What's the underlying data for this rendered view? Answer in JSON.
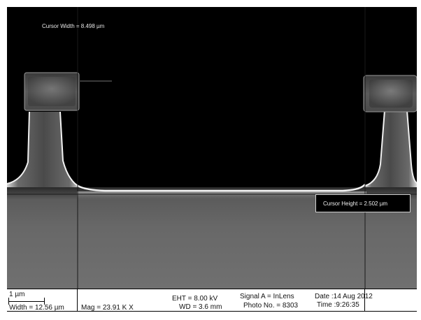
{
  "overlay": {
    "cursor_width": "Cursor Width = 8.498 µm",
    "cursor_height": "Cursor Height = 2.502 µm"
  },
  "databar": {
    "scale_label": "1 µm",
    "width": "Width = 12.56 µm",
    "mag": "Mag =  23.91 K X",
    "eht": "EHT =  8.00 kV",
    "wd": "WD =  3.6 mm",
    "signal": "Signal A = InLens",
    "photo": "Photo No. = 8303",
    "date": "Date :14 Aug 2012",
    "time": "Time :9:26:35"
  }
}
